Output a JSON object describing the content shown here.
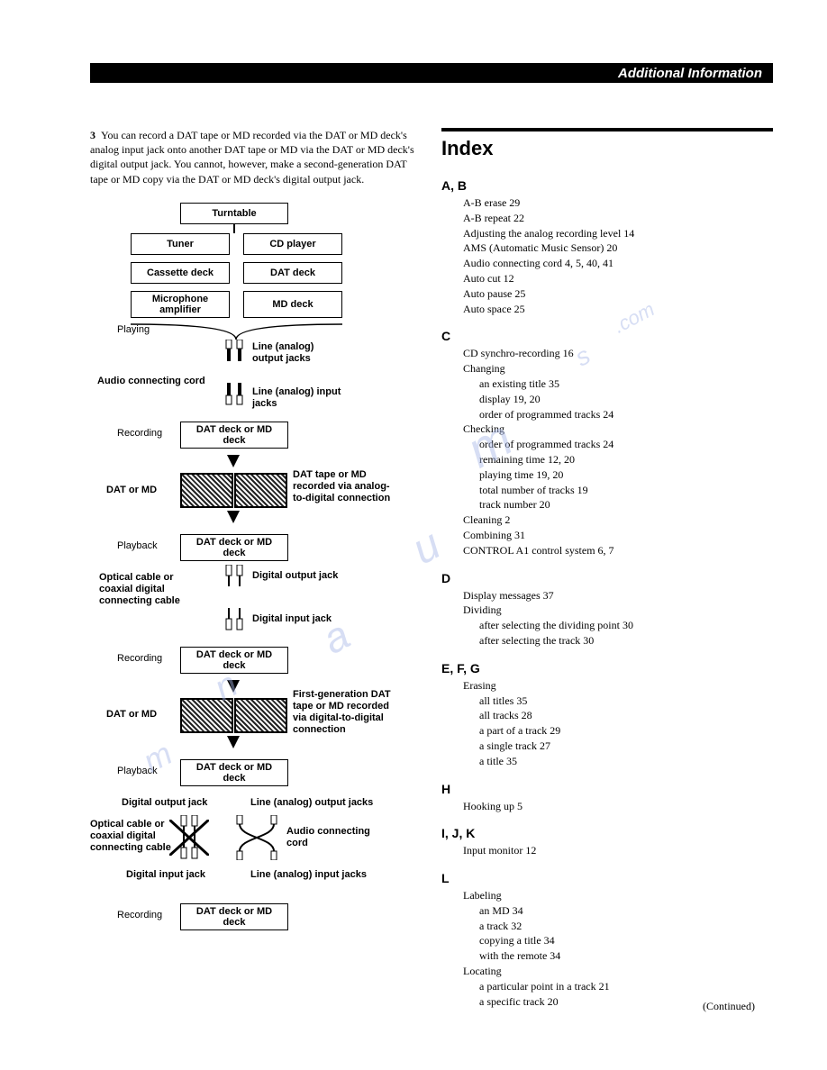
{
  "header": {
    "title": "Additional Information"
  },
  "left": {
    "note_num": "3",
    "note": "You can record a DAT tape or MD recorded via the DAT or MD deck's analog input jack onto another DAT tape or MD via the DAT or MD deck's digital output jack. You cannot, however, make a second-generation DAT tape or MD copy via the DAT or MD deck's digital output jack.",
    "boxes": {
      "turntable": "Turntable",
      "tuner": "Tuner",
      "cd": "CD player",
      "cassette": "Cassette deck",
      "dat": "DAT deck",
      "mic": "Microphone amplifier",
      "md": "MD deck",
      "datmd1": "DAT deck or MD deck",
      "datmd2": "DAT deck or MD deck",
      "datmd3": "DAT deck or MD deck",
      "datmd4": "DAT deck or MD deck",
      "datmd5": "DAT deck or MD deck"
    },
    "labels": {
      "playing": "Playing",
      "line_out": "Line (analog) output jacks",
      "audio_cord": "Audio connecting cord",
      "line_in": "Line (analog) input jacks",
      "recording1": "Recording",
      "dat_or_md1": "DAT or MD",
      "tape1": "DAT tape or MD recorded via analog-to-digital connection",
      "playback1": "Playback",
      "optical1": "Optical cable or coaxial digital connecting cable",
      "dig_out": "Digital output jack",
      "dig_in": "Digital input jack",
      "recording2": "Recording",
      "dat_or_md2": "DAT or MD",
      "tape2": "First-generation DAT tape or MD recorded via digital-to-digital connection",
      "playback2": "Playback",
      "dig_out2": "Digital output jack",
      "line_out2": "Line (analog) output jacks",
      "optical2": "Optical cable or coaxial digital connecting cable",
      "audio_cord2": "Audio connecting cord",
      "dig_in2": "Digital input jack",
      "line_in2": "Line (analog) input jacks",
      "recording3": "Recording"
    }
  },
  "index": {
    "title": "Index",
    "sections": [
      {
        "letter": "A, B",
        "entries": [
          {
            "t": "A-B erase  29"
          },
          {
            "t": "A-B repeat  22"
          },
          {
            "t": "Adjusting the analog recording level  14"
          },
          {
            "t": "AMS (Automatic Music Sensor)  20"
          },
          {
            "t": "Audio connecting cord  4, 5, 40, 41"
          },
          {
            "t": "Auto cut  12"
          },
          {
            "t": "Auto pause  25"
          },
          {
            "t": "Auto space  25"
          }
        ]
      },
      {
        "letter": "C",
        "entries": [
          {
            "t": "CD synchro-recording  16"
          },
          {
            "t": "Changing"
          },
          {
            "t": "an existing title  35",
            "sub": true
          },
          {
            "t": "display  19, 20",
            "sub": true
          },
          {
            "t": "order of programmed tracks  24",
            "sub": true
          },
          {
            "t": "Checking"
          },
          {
            "t": "order of programmed tracks  24",
            "sub": true
          },
          {
            "t": "remaining time  12, 20",
            "sub": true
          },
          {
            "t": "playing time  19, 20",
            "sub": true
          },
          {
            "t": "total number of tracks  19",
            "sub": true
          },
          {
            "t": "track number  20",
            "sub": true
          },
          {
            "t": "Cleaning  2"
          },
          {
            "t": "Combining  31"
          },
          {
            "t": "CONTROL A1 control system  6, 7"
          }
        ]
      },
      {
        "letter": "D",
        "entries": [
          {
            "t": "Display messages  37"
          },
          {
            "t": "Dividing"
          },
          {
            "t": "after selecting the dividing point  30",
            "sub": true
          },
          {
            "t": "after selecting the track  30",
            "sub": true
          }
        ]
      },
      {
        "letter": "E, F, G",
        "entries": [
          {
            "t": "Erasing"
          },
          {
            "t": "all titles  35",
            "sub": true
          },
          {
            "t": "all tracks  28",
            "sub": true
          },
          {
            "t": "a part of a track  29",
            "sub": true
          },
          {
            "t": "a single track  27",
            "sub": true
          },
          {
            "t": "a title  35",
            "sub": true
          }
        ]
      },
      {
        "letter": "H",
        "entries": [
          {
            "t": "Hooking up  5"
          }
        ]
      },
      {
        "letter": "I, J, K",
        "entries": [
          {
            "t": "Input monitor  12"
          }
        ]
      },
      {
        "letter": "L",
        "entries": [
          {
            "t": "Labeling"
          },
          {
            "t": "an MD  34",
            "sub": true
          },
          {
            "t": "a track  32",
            "sub": true
          },
          {
            "t": "copying a title  34",
            "sub": true
          },
          {
            "t": "with the remote  34",
            "sub": true
          },
          {
            "t": "Locating"
          },
          {
            "t": "a particular point in a track  21",
            "sub": true
          },
          {
            "t": "a specific track  20",
            "sub": true
          }
        ]
      }
    ],
    "continued": "(Continued)"
  }
}
